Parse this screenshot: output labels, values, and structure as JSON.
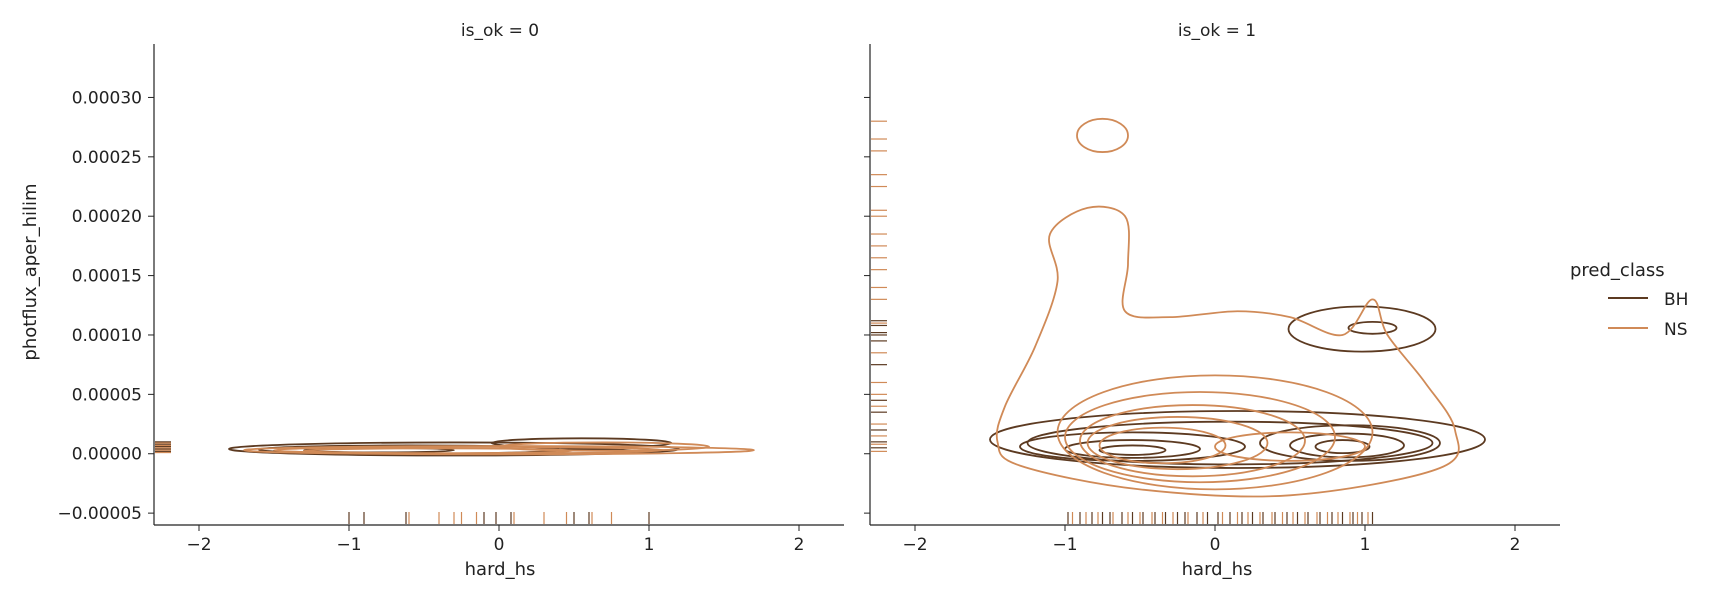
{
  "chart_data": {
    "type": "contour",
    "kind": "kde",
    "xlabel": "hard_hs",
    "ylabel": "photflux_aper_hilim",
    "xlim": [
      -2.3,
      2.3
    ],
    "ylim": [
      -6e-05,
      0.000345
    ],
    "x_ticks": [
      -2,
      -1,
      0,
      1,
      2
    ],
    "x_tick_labels": [
      "−2",
      "−1",
      "0",
      "1",
      "2"
    ],
    "y_ticks": [
      -5e-05,
      0,
      5e-05,
      0.0001,
      0.00015,
      0.0002,
      0.00025,
      0.0003
    ],
    "y_tick_labels": [
      "−0.00005",
      "0.00000",
      "0.00005",
      "0.00010",
      "0.00015",
      "0.00020",
      "0.00025",
      "0.00030"
    ],
    "grid": false,
    "legend": {
      "title": "pred_class",
      "position": "right",
      "entries": [
        {
          "label": "BH",
          "color": "#5c3a21"
        },
        {
          "label": "NS",
          "color": "#d08a57"
        }
      ]
    },
    "panels": [
      {
        "title": "is_ok = 0",
        "series": [
          {
            "name": "BH",
            "color": "#5c3a21",
            "rug_x": [
              -1.0,
              -0.9,
              -0.62,
              -0.1,
              -0.02,
              0.08,
              0.5,
              0.6,
              1.0
            ],
            "rug_y": [
              2e-06,
              4e-06,
              6e-06,
              8e-06,
              1e-05
            ],
            "contours": [
              {
                "cx": -0.3,
                "cy": 4e-06,
                "rx": 1.5,
                "ry": 5.5e-06
              },
              {
                "cx": -0.6,
                "cy": 3.5e-06,
                "rx": 1.0,
                "ry": 3.5e-06
              },
              {
                "cx": -0.8,
                "cy": 3e-06,
                "rx": 0.5,
                "ry": 1.8e-06
              },
              {
                "cx": 0.55,
                "cy": 9e-06,
                "rx": 0.6,
                "ry": 4e-06
              },
              {
                "cx": 0.6,
                "cy": 2e-06,
                "rx": 0.3,
                "ry": 1.8e-06
              }
            ]
          },
          {
            "name": "NS",
            "color": "#d08a57",
            "rug_x": [
              -0.6,
              -0.4,
              -0.3,
              -0.25,
              -0.15,
              0.1,
              0.3,
              0.45,
              0.62,
              0.75
            ],
            "rug_y": [
              1e-06,
              3e-06,
              5e-06,
              7e-06,
              9e-06
            ],
            "contours": [
              {
                "cx": 0.0,
                "cy": 3e-06,
                "rx": 1.7,
                "ry": 3.5e-06
              },
              {
                "cx": -0.2,
                "cy": 3e-06,
                "rx": 1.3,
                "ry": 2.8e-06
              },
              {
                "cx": -0.4,
                "cy": 2.5e-06,
                "rx": 0.9,
                "ry": 2e-06
              },
              {
                "cx": 0.7,
                "cy": 6e-06,
                "rx": 0.7,
                "ry": 3.5e-06
              }
            ]
          }
        ]
      },
      {
        "title": "is_ok = 1",
        "series": [
          {
            "name": "BH",
            "color": "#5c3a21",
            "rug_x": [
              -0.98,
              -0.9,
              -0.82,
              -0.75,
              -0.7,
              -0.62,
              -0.55,
              -0.48,
              -0.4,
              -0.33,
              -0.25,
              -0.2,
              -0.12,
              -0.05,
              0.02,
              0.1,
              0.18,
              0.25,
              0.32,
              0.4,
              0.48,
              0.55,
              0.62,
              0.7,
              0.78,
              0.85,
              0.92,
              0.98,
              1.05
            ],
            "rug_y": [
              5e-06,
              1e-05,
              2e-05,
              3.5e-05,
              4.5e-05,
              7.5e-05,
              9.5e-05,
              0.0001,
              0.000102,
              0.000108,
              0.000112
            ],
            "contours": [
              {
                "cx": 0.15,
                "cy": 1.2e-05,
                "rx": 1.65,
                "ry": 2.4e-05
              },
              {
                "cx": 0.1,
                "cy": 9e-06,
                "rx": 1.35,
                "ry": 1.8e-05
              },
              {
                "cx": -0.55,
                "cy": 6e-06,
                "rx": 0.75,
                "ry": 1.2e-05
              },
              {
                "cx": -0.55,
                "cy": 4e-06,
                "rx": 0.45,
                "ry": 7.5e-06
              },
              {
                "cx": -0.55,
                "cy": 3e-06,
                "rx": 0.22,
                "ry": 4e-06
              },
              {
                "cx": 0.9,
                "cy": 9e-06,
                "rx": 0.6,
                "ry": 1.5e-05
              },
              {
                "cx": 0.88,
                "cy": 7e-06,
                "rx": 0.38,
                "ry": 1e-05
              },
              {
                "cx": 0.85,
                "cy": 6e-06,
                "rx": 0.18,
                "ry": 5.5e-06
              },
              {
                "cx": 0.98,
                "cy": 0.000105,
                "rx": 0.49,
                "ry": 1.9e-05
              },
              {
                "cx": 1.05,
                "cy": 0.000106,
                "rx": 0.16,
                "ry": 5e-06
              }
            ]
          },
          {
            "name": "NS",
            "color": "#d08a57",
            "rug_x": [
              -0.95,
              -0.86,
              -0.78,
              -0.68,
              -0.58,
              -0.5,
              -0.42,
              -0.35,
              -0.28,
              -0.18,
              -0.08,
              0.05,
              0.15,
              0.22,
              0.3,
              0.38,
              0.45,
              0.52,
              0.6,
              0.68,
              0.75,
              0.82,
              0.9,
              0.95,
              1.02
            ],
            "rug_y": [
              2e-06,
              8e-06,
              1.5e-05,
              2.5e-05,
              4e-05,
              5e-05,
              6e-05,
              8.5e-05,
              0.00011,
              0.00013,
              0.00014,
              0.000155,
              0.000165,
              0.000175,
              0.000185,
              0.0002,
              0.000205,
              0.000225,
              0.000235,
              0.000255,
              0.000265,
              0.00028
            ],
            "contours": [
              {
                "cx": 0.0,
                "cy": 1.8e-05,
                "rx": 1.05,
                "ry": 4.8e-05
              },
              {
                "cx": -0.1,
                "cy": 1.4e-05,
                "rx": 0.9,
                "ry": 3.8e-05
              },
              {
                "cx": -0.15,
                "cy": 1.1e-05,
                "rx": 0.75,
                "ry": 3e-05
              },
              {
                "cx": -0.25,
                "cy": 9e-06,
                "rx": 0.6,
                "ry": 2.2e-05
              },
              {
                "cx": -0.35,
                "cy": 7e-06,
                "rx": 0.42,
                "ry": 1.5e-05
              },
              {
                "cx": 0.5,
                "cy": 6e-06,
                "rx": 0.5,
                "ry": 1.2e-05
              },
              {
                "cx": -0.75,
                "cy": 0.000268,
                "rx": 0.17,
                "ry": 1.4e-05
              }
            ],
            "outer_contour": [
              [
                -1.45,
                1e-05
              ],
              [
                -1.4,
                4e-05
              ],
              [
                -1.2,
                9e-05
              ],
              [
                -1.05,
                0.000145
              ],
              [
                -1.1,
                0.000185
              ],
              [
                -0.85,
                0.000207
              ],
              [
                -0.6,
                0.0002
              ],
              [
                -0.58,
                0.00016
              ],
              [
                -0.6,
                0.00012
              ],
              [
                -0.3,
                0.000115
              ],
              [
                0.15,
                0.00012
              ],
              [
                0.5,
                0.000115
              ],
              [
                0.85,
                0.0001
              ],
              [
                1.05,
                0.00013
              ],
              [
                1.15,
                0.0001
              ],
              [
                1.4,
                6e-05
              ],
              [
                1.6,
                2e-05
              ],
              [
                1.5,
                -1.2e-05
              ],
              [
                0.5,
                -3.5e-05
              ],
              [
                -0.5,
                -3e-05
              ],
              [
                -1.3,
                -1e-05
              ]
            ]
          }
        ]
      }
    ]
  }
}
